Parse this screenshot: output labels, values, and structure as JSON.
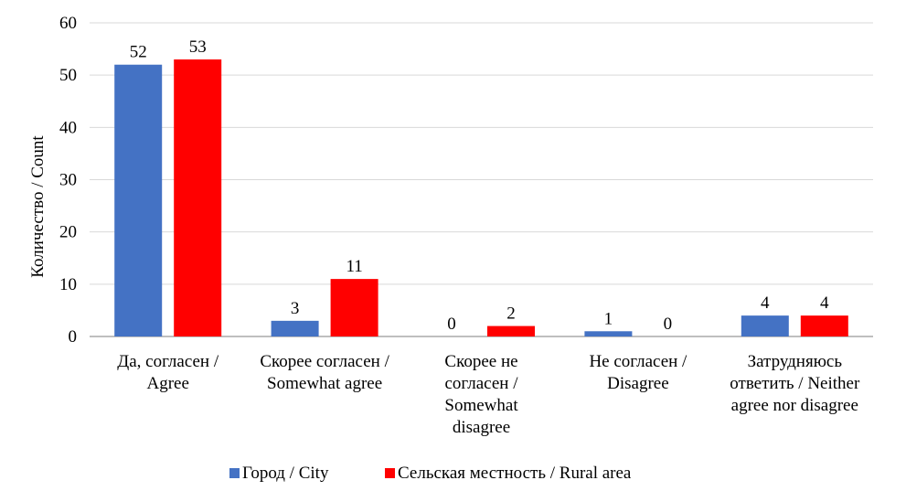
{
  "chart_data": {
    "type": "bar",
    "title": "",
    "xlabel": "",
    "ylabel": "Количество / Count",
    "ylim": [
      0,
      60
    ],
    "yticks": [
      0,
      10,
      20,
      30,
      40,
      50,
      60
    ],
    "grid": true,
    "legend_position": "bottom",
    "categories": [
      [
        "Да, согласен /",
        "Agree"
      ],
      [
        "Скорее согласен /",
        "Somewhat agree"
      ],
      [
        "Скорее не",
        "согласен /",
        "Somewhat",
        "disagree"
      ],
      [
        "Не согласен /",
        "Disagree"
      ],
      [
        "Затрудняюсь",
        "ответить / Neither",
        "agree nor disagree"
      ]
    ],
    "series": [
      {
        "name": "Город / City",
        "color": "#4472C4",
        "values": [
          52,
          3,
          0,
          1,
          4
        ]
      },
      {
        "name": "Сельская местность / Rural area",
        "color": "#FF0000",
        "values": [
          53,
          11,
          2,
          0,
          4
        ]
      }
    ]
  }
}
